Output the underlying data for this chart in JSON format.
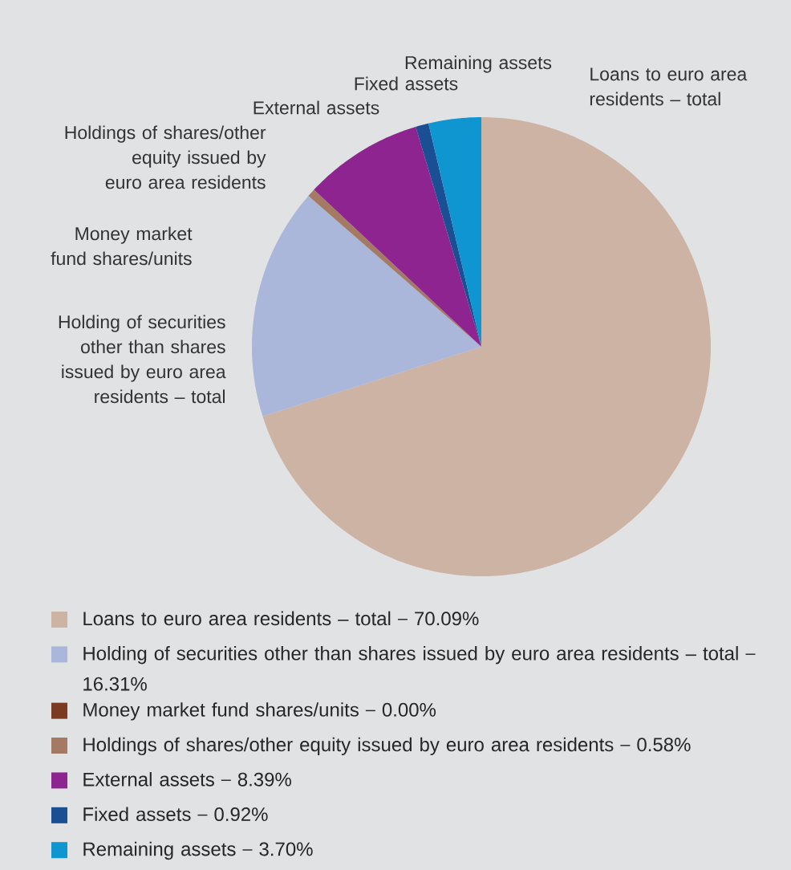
{
  "chart_data": {
    "type": "pie",
    "categories": [
      "Loans to euro area residents – total",
      "Holding of securities other than shares issued by euro area residents – total",
      "Money market fund shares/units",
      "Holdings of shares/other equity issued by euro area residents",
      "External assets",
      "Fixed assets",
      "Remaining assets"
    ],
    "values": [
      70.09,
      16.31,
      0.0,
      0.58,
      8.39,
      0.92,
      3.7
    ],
    "value_labels": [
      "70.09%",
      "16.31%",
      "0.00%",
      "0.58%",
      "8.39%",
      "0.92%",
      "3.70%"
    ],
    "colors": [
      "#cdb3a3",
      "#aab6da",
      "#7a3b22",
      "#a57a64",
      "#8e2490",
      "#1b4f93",
      "#0f95cf"
    ],
    "legend": "bottom"
  }
}
